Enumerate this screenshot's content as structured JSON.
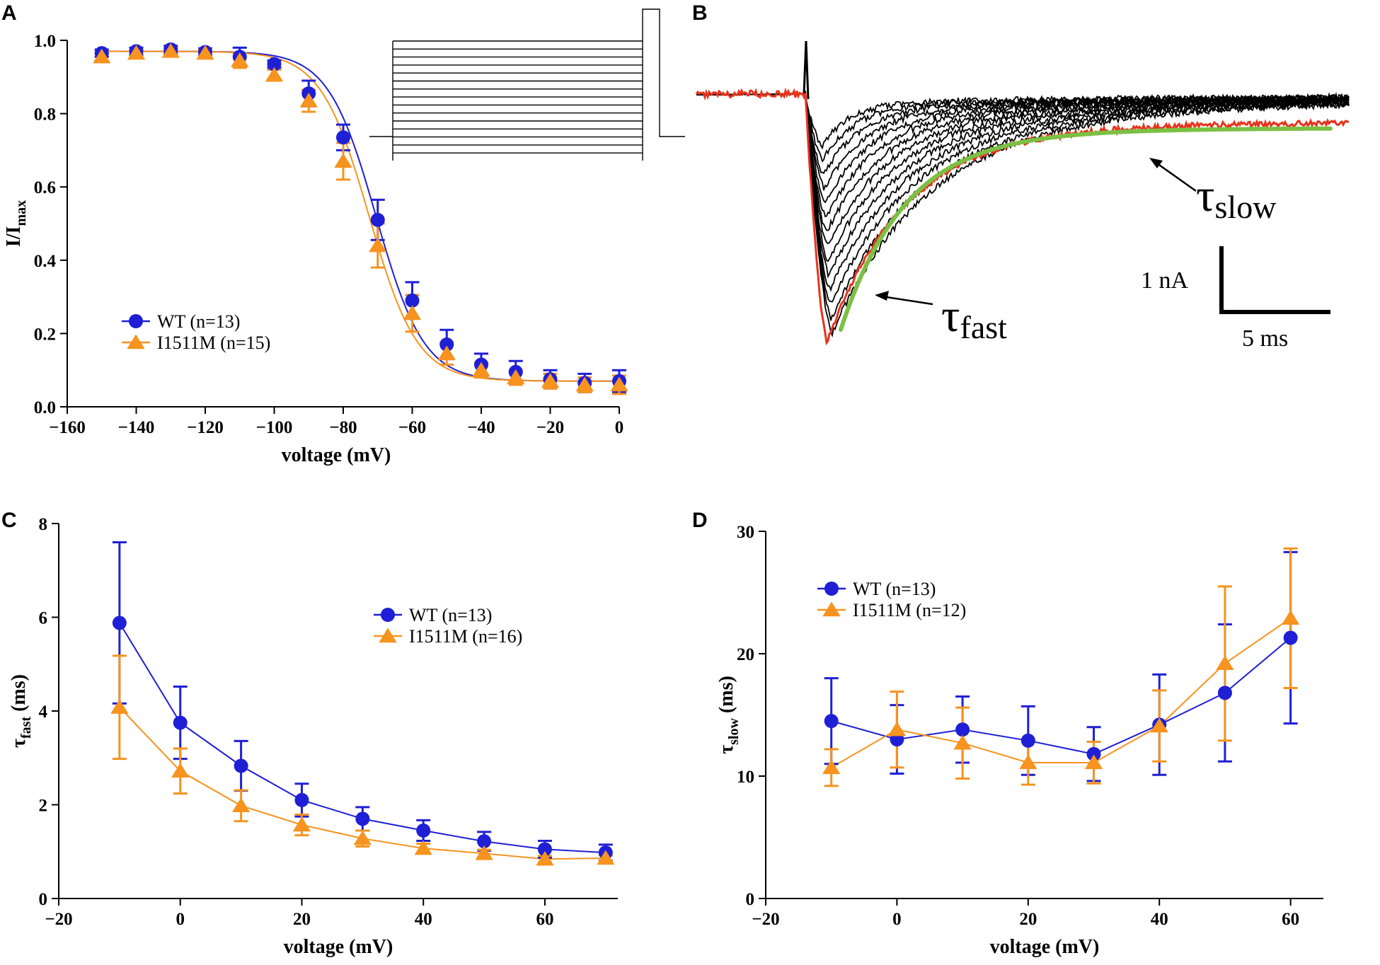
{
  "colors": {
    "wt": "#1f1fd6",
    "mutant": "#f7931e",
    "fit": "#7bc043",
    "trace": "#000000",
    "highlight": "#e8331c"
  },
  "chart_data": [
    {
      "panel": "A",
      "type": "scatter",
      "xlabel": "voltage (mV)",
      "ylabel_main": "I/I",
      "ylabel_sub": "max",
      "xlim": [
        -160,
        0
      ],
      "ylim": [
        0,
        1.0
      ],
      "xticks": [
        -160,
        -140,
        -120,
        -100,
        -80,
        -60,
        -40,
        -20,
        0
      ],
      "xtick_labels": [
        "−160",
        "−140",
        "−120",
        "−100",
        "−80",
        "−60",
        "−40",
        "−20",
        "0"
      ],
      "yticks": [
        0,
        0.2,
        0.4,
        0.6,
        0.8,
        1.0
      ],
      "ytick_labels": [
        "0.0",
        "0.2",
        "0.4",
        "0.6",
        "0.8",
        "1.0"
      ],
      "fits": [
        {
          "series": "WT",
          "v_half": -70.5,
          "k": 6.9,
          "top": 0.97,
          "bottom": 0.07
        },
        {
          "series": "I1511M",
          "v_half": -72.5,
          "k": 7.0,
          "top": 0.97,
          "bottom": 0.07
        }
      ],
      "series": [
        {
          "name": "WT (n=13)",
          "key": "wt",
          "marker": "circle",
          "x": [
            -150,
            -140,
            -130,
            -120,
            -110,
            -100,
            -90,
            -80,
            -70,
            -60,
            -50,
            -40,
            -30,
            -20,
            -10,
            0
          ],
          "y": [
            0.965,
            0.97,
            0.975,
            0.968,
            0.955,
            0.935,
            0.855,
            0.735,
            0.51,
            0.29,
            0.17,
            0.115,
            0.095,
            0.075,
            0.065,
            0.07
          ],
          "err": [
            0.01,
            0.01,
            0.01,
            0.01,
            0.025,
            0.01,
            0.035,
            0.035,
            0.055,
            0.05,
            0.04,
            0.03,
            0.03,
            0.025,
            0.025,
            0.03
          ]
        },
        {
          "name": "I1511M (n=15)",
          "key": "mutant",
          "marker": "triangle",
          "x": [
            -150,
            -140,
            -130,
            -120,
            -110,
            -100,
            -90,
            -80,
            -70,
            -60,
            -50,
            -40,
            -30,
            -20,
            -10,
            0
          ],
          "y": [
            0.955,
            0.965,
            0.97,
            0.965,
            0.945,
            0.905,
            0.835,
            0.67,
            0.44,
            0.255,
            0.145,
            0.1,
            0.08,
            0.07,
            0.06,
            0.06
          ],
          "err": [
            0.01,
            0.01,
            0.01,
            0.01,
            0.02,
            0.015,
            0.03,
            0.05,
            0.06,
            0.05,
            0.03,
            0.02,
            0.02,
            0.02,
            0.02,
            0.025
          ]
        }
      ],
      "legend": [
        "WT (n=13)",
        "I1511M (n=15)"
      ]
    },
    {
      "panel": "B",
      "type": "line",
      "annotations": {
        "tau_fast": "fast",
        "tau_slow": "slow",
        "scale_current": "1 nA",
        "scale_time": "5 ms"
      }
    },
    {
      "panel": "C",
      "type": "line",
      "xlabel": "voltage (mV)",
      "ylabel_main": "τ",
      "ylabel_sub": "fast",
      "ylabel_unit": "(ms)",
      "xlim": [
        -20,
        72
      ],
      "ylim": [
        0,
        8
      ],
      "xticks": [
        -20,
        0,
        20,
        40,
        60
      ],
      "xtick_labels": [
        "−20",
        "0",
        "20",
        "40",
        "60"
      ],
      "yticks": [
        0,
        2,
        4,
        6,
        8
      ],
      "ytick_labels": [
        "0",
        "2",
        "4",
        "6",
        "8"
      ],
      "series": [
        {
          "name": "WT (n=13)",
          "key": "wt",
          "marker": "circle",
          "x": [
            -10,
            0,
            10,
            20,
            30,
            40,
            50,
            60,
            70
          ],
          "y": [
            5.88,
            3.75,
            2.83,
            2.1,
            1.7,
            1.45,
            1.22,
            1.05,
            0.98
          ],
          "err": [
            1.72,
            0.77,
            0.53,
            0.35,
            0.25,
            0.22,
            0.2,
            0.18,
            0.17
          ]
        },
        {
          "name": "I1511M (n=16)",
          "key": "mutant",
          "marker": "triangle",
          "x": [
            -10,
            0,
            10,
            20,
            30,
            40,
            50,
            60,
            70
          ],
          "y": [
            4.08,
            2.72,
            1.98,
            1.57,
            1.28,
            1.07,
            0.96,
            0.84,
            0.86
          ],
          "err": [
            1.1,
            0.48,
            0.33,
            0.22,
            0.17,
            0.1,
            0.08,
            0.07,
            0.06
          ]
        }
      ],
      "legend": [
        "WT (n=13)",
        "I1511M (n=16)"
      ]
    },
    {
      "panel": "D",
      "type": "line",
      "xlabel": "voltage (mV)",
      "ylabel_main": "τ",
      "ylabel_sub": "slow",
      "ylabel_unit": "(ms)",
      "xlim": [
        -20,
        65
      ],
      "ylim": [
        0,
        30
      ],
      "xticks": [
        -20,
        0,
        20,
        40,
        60
      ],
      "xtick_labels": [
        "−20",
        "0",
        "20",
        "40",
        "60"
      ],
      "yticks": [
        0,
        10,
        20,
        30
      ],
      "ytick_labels": [
        "0",
        "10",
        "20",
        "30"
      ],
      "series": [
        {
          "name": "WT (n=13)",
          "key": "wt",
          "marker": "circle",
          "x": [
            -10,
            0,
            10,
            20,
            30,
            40,
            50,
            60
          ],
          "y": [
            14.5,
            13.0,
            13.8,
            12.9,
            11.8,
            14.2,
            16.8,
            21.3
          ],
          "err": [
            3.5,
            2.8,
            2.7,
            2.8,
            2.2,
            4.1,
            5.6,
            7.0
          ]
        },
        {
          "name": "I1511M (n=12)",
          "key": "mutant",
          "marker": "triangle",
          "x": [
            -10,
            0,
            10,
            20,
            30,
            40,
            50,
            60
          ],
          "y": [
            10.7,
            13.8,
            12.7,
            11.1,
            11.1,
            14.1,
            19.2,
            22.9
          ],
          "err": [
            1.5,
            3.1,
            2.9,
            1.8,
            1.7,
            2.9,
            6.3,
            5.7
          ]
        }
      ],
      "legend": [
        "WT (n=13)",
        "I1511M (n=12)"
      ]
    }
  ]
}
